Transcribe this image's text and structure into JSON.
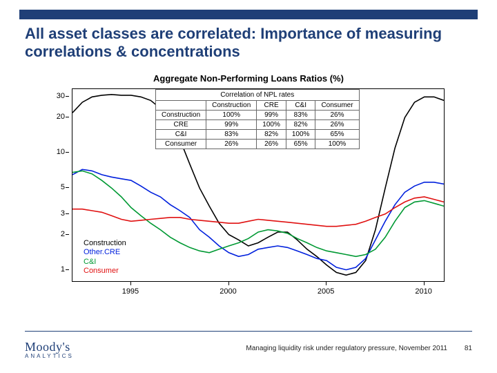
{
  "slide": {
    "title": "All asset classes are correlated: Importance of measuring correlations & concentrations",
    "title_color": "#1f3f77",
    "top_bar_color": "#1f3f77"
  },
  "chart": {
    "type": "line",
    "title": "Aggregate Non-Performing Loans Ratios (%)",
    "background_color": "#ffffff",
    "axis_color": "#000000",
    "scale": "log",
    "ylim": [
      0.8,
      35
    ],
    "y_ticks": [
      1,
      2,
      3,
      5,
      10,
      20,
      30
    ],
    "x_years": [
      1992,
      2011
    ],
    "x_tick_labels": [
      "1995",
      "2000",
      "2005",
      "2010"
    ],
    "x_tick_year_values": [
      1995,
      2000,
      2005,
      2010
    ],
    "line_width": 1.6,
    "series": [
      {
        "name": "Construction",
        "color": "#000000",
        "points": [
          [
            1992,
            22
          ],
          [
            1992.5,
            27
          ],
          [
            1993,
            30
          ],
          [
            1993.5,
            31
          ],
          [
            1994,
            31.5
          ],
          [
            1994.5,
            31
          ],
          [
            1995,
            31
          ],
          [
            1995.5,
            30
          ],
          [
            1996,
            28
          ],
          [
            1996.5,
            24
          ],
          [
            1997,
            18
          ],
          [
            1997.5,
            13
          ],
          [
            1998,
            8
          ],
          [
            1998.5,
            5
          ],
          [
            1999,
            3.5
          ],
          [
            1999.5,
            2.5
          ],
          [
            2000,
            2.0
          ],
          [
            2000.5,
            1.8
          ],
          [
            2001,
            1.6
          ],
          [
            2001.5,
            1.7
          ],
          [
            2002,
            1.9
          ],
          [
            2002.5,
            2.1
          ],
          [
            2003,
            2.1
          ],
          [
            2003.5,
            1.8
          ],
          [
            2004,
            1.5
          ],
          [
            2004.5,
            1.3
          ],
          [
            2005,
            1.1
          ],
          [
            2005.5,
            0.95
          ],
          [
            2006,
            0.9
          ],
          [
            2006.5,
            0.95
          ],
          [
            2007,
            1.2
          ],
          [
            2007.5,
            2.2
          ],
          [
            2008,
            5
          ],
          [
            2008.5,
            11
          ],
          [
            2009,
            20
          ],
          [
            2009.5,
            27
          ],
          [
            2010,
            30
          ],
          [
            2010.5,
            30
          ],
          [
            2011,
            28
          ]
        ]
      },
      {
        "name": "Other.CRE",
        "color": "#0020dd",
        "points": [
          [
            1992,
            6.5
          ],
          [
            1992.5,
            7.2
          ],
          [
            1993,
            7.0
          ],
          [
            1993.5,
            6.5
          ],
          [
            1994,
            6.2
          ],
          [
            1994.5,
            6.0
          ],
          [
            1995,
            5.8
          ],
          [
            1995.5,
            5.2
          ],
          [
            1996,
            4.6
          ],
          [
            1996.5,
            4.2
          ],
          [
            1997,
            3.6
          ],
          [
            1997.5,
            3.2
          ],
          [
            1998,
            2.8
          ],
          [
            1998.5,
            2.2
          ],
          [
            1999,
            1.9
          ],
          [
            1999.5,
            1.6
          ],
          [
            2000,
            1.4
          ],
          [
            2000.5,
            1.3
          ],
          [
            2001,
            1.35
          ],
          [
            2001.5,
            1.5
          ],
          [
            2002,
            1.55
          ],
          [
            2002.5,
            1.6
          ],
          [
            2003,
            1.55
          ],
          [
            2003.5,
            1.45
          ],
          [
            2004,
            1.35
          ],
          [
            2004.5,
            1.25
          ],
          [
            2005,
            1.2
          ],
          [
            2005.5,
            1.05
          ],
          [
            2006,
            1.0
          ],
          [
            2006.5,
            1.05
          ],
          [
            2007,
            1.25
          ],
          [
            2007.5,
            1.8
          ],
          [
            2008,
            2.6
          ],
          [
            2008.5,
            3.6
          ],
          [
            2009,
            4.6
          ],
          [
            2009.5,
            5.2
          ],
          [
            2010,
            5.6
          ],
          [
            2010.5,
            5.6
          ],
          [
            2011,
            5.4
          ]
        ]
      },
      {
        "name": "C&I",
        "color": "#009933",
        "points": [
          [
            1992,
            6.8
          ],
          [
            1992.5,
            7.0
          ],
          [
            1993,
            6.6
          ],
          [
            1993.5,
            5.8
          ],
          [
            1994,
            5.0
          ],
          [
            1994.5,
            4.2
          ],
          [
            1995,
            3.4
          ],
          [
            1995.5,
            2.9
          ],
          [
            1996,
            2.5
          ],
          [
            1996.5,
            2.2
          ],
          [
            1997,
            1.9
          ],
          [
            1997.5,
            1.7
          ],
          [
            1998,
            1.55
          ],
          [
            1998.5,
            1.45
          ],
          [
            1999,
            1.4
          ],
          [
            1999.5,
            1.5
          ],
          [
            2000,
            1.6
          ],
          [
            2000.5,
            1.7
          ],
          [
            2001,
            1.85
          ],
          [
            2001.5,
            2.1
          ],
          [
            2002,
            2.2
          ],
          [
            2002.5,
            2.15
          ],
          [
            2003,
            2.05
          ],
          [
            2003.5,
            1.85
          ],
          [
            2004,
            1.7
          ],
          [
            2004.5,
            1.55
          ],
          [
            2005,
            1.45
          ],
          [
            2005.5,
            1.4
          ],
          [
            2006,
            1.35
          ],
          [
            2006.5,
            1.3
          ],
          [
            2007,
            1.35
          ],
          [
            2007.5,
            1.5
          ],
          [
            2008,
            1.9
          ],
          [
            2008.5,
            2.6
          ],
          [
            2009,
            3.4
          ],
          [
            2009.5,
            3.8
          ],
          [
            2010,
            3.9
          ],
          [
            2010.5,
            3.7
          ],
          [
            2011,
            3.5
          ]
        ]
      },
      {
        "name": "Consumer",
        "color": "#e01010",
        "points": [
          [
            1992,
            3.3
          ],
          [
            1992.5,
            3.3
          ],
          [
            1993,
            3.2
          ],
          [
            1993.5,
            3.1
          ],
          [
            1994,
            2.9
          ],
          [
            1994.5,
            2.7
          ],
          [
            1995,
            2.6
          ],
          [
            1995.5,
            2.65
          ],
          [
            1996,
            2.7
          ],
          [
            1996.5,
            2.75
          ],
          [
            1997,
            2.8
          ],
          [
            1997.5,
            2.8
          ],
          [
            1998,
            2.7
          ],
          [
            1998.5,
            2.65
          ],
          [
            1999,
            2.6
          ],
          [
            1999.5,
            2.55
          ],
          [
            2000,
            2.5
          ],
          [
            2000.5,
            2.5
          ],
          [
            2001,
            2.6
          ],
          [
            2001.5,
            2.7
          ],
          [
            2002,
            2.65
          ],
          [
            2002.5,
            2.6
          ],
          [
            2003,
            2.55
          ],
          [
            2003.5,
            2.5
          ],
          [
            2004,
            2.45
          ],
          [
            2004.5,
            2.4
          ],
          [
            2005,
            2.35
          ],
          [
            2005.5,
            2.35
          ],
          [
            2006,
            2.4
          ],
          [
            2006.5,
            2.45
          ],
          [
            2007,
            2.6
          ],
          [
            2007.5,
            2.8
          ],
          [
            2008,
            3.0
          ],
          [
            2008.5,
            3.4
          ],
          [
            2009,
            3.8
          ],
          [
            2009.5,
            4.1
          ],
          [
            2010,
            4.2
          ],
          [
            2010.5,
            4.0
          ],
          [
            2011,
            3.8
          ]
        ]
      }
    ],
    "legend": {
      "items": [
        {
          "label": "Construction",
          "color": "#000000"
        },
        {
          "label": "Other.CRE",
          "color": "#0020dd"
        },
        {
          "label": "C&I",
          "color": "#009933"
        },
        {
          "label": "Consumer",
          "color": "#e01010"
        }
      ]
    }
  },
  "table": {
    "caption": "Correlation of NPL rates",
    "columns": [
      "",
      "Construction",
      "CRE",
      "C&I",
      "Consumer"
    ],
    "rows": [
      [
        "Construction",
        "100%",
        "99%",
        "83%",
        "26%"
      ],
      [
        "CRE",
        "99%",
        "100%",
        "82%",
        "26%"
      ],
      [
        "C&I",
        "83%",
        "82%",
        "100%",
        "65%"
      ],
      [
        "Consumer",
        "26%",
        "26%",
        "65%",
        "100%"
      ]
    ]
  },
  "footer": {
    "logo_main": "Moody's",
    "logo_sub": "ANALYTICS",
    "text": "Managing liquidity risk under regulatory pressure, November 2011",
    "page": "81",
    "line_color": "#1f3f77",
    "logo_color": "#1f3f77"
  }
}
